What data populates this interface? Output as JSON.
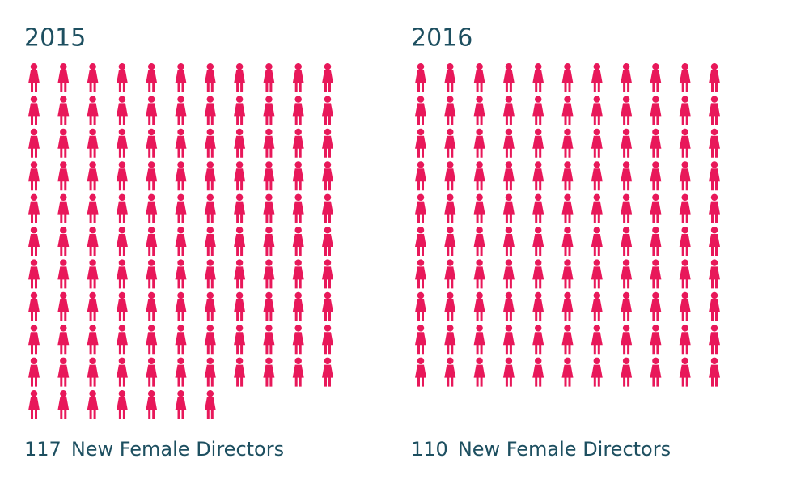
{
  "chart_data": [
    {
      "type": "pictogram",
      "title": "2015",
      "value": 117,
      "caption": "New Female Directors",
      "color": "#e8185a",
      "per_row": 11
    },
    {
      "type": "pictogram",
      "title": "2016",
      "value": 110,
      "caption": "New Female Directors",
      "color": "#e8185a",
      "per_row": 11
    }
  ]
}
